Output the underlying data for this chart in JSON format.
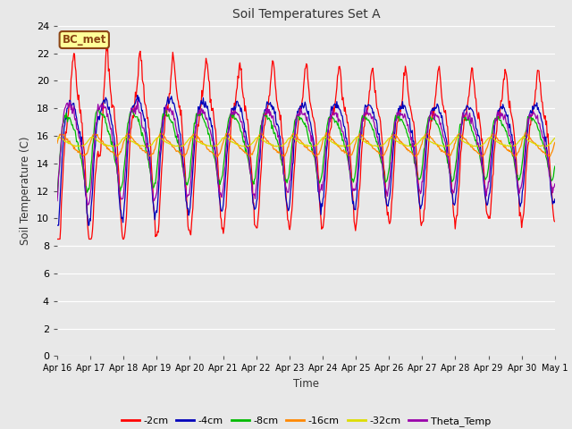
{
  "title": "Soil Temperatures Set A",
  "xlabel": "Time",
  "ylabel": "Soil Temperature (C)",
  "ylim": [
    0,
    24
  ],
  "yticks": [
    0,
    2,
    4,
    6,
    8,
    10,
    12,
    14,
    16,
    18,
    20,
    22,
    24
  ],
  "xtick_labels": [
    "Apr 16",
    "Apr 17",
    "Apr 18",
    "Apr 19",
    "Apr 20",
    "Apr 21",
    "Apr 22",
    "Apr 23",
    "Apr 24",
    "Apr 25",
    "Apr 26",
    "Apr 27",
    "Apr 28",
    "Apr 29",
    "Apr 30",
    "May 1"
  ],
  "legend_labels": [
    "-2cm",
    "-4cm",
    "-8cm",
    "-16cm",
    "-32cm",
    "Theta_Temp"
  ],
  "legend_colors": [
    "#ff0000",
    "#0000bb",
    "#00bb00",
    "#ff8800",
    "#dddd00",
    "#9900aa"
  ],
  "line_colors": [
    "#ff0000",
    "#0000bb",
    "#00bb00",
    "#ff8800",
    "#dddd00",
    "#9900aa"
  ],
  "annotation_text": "BC_met",
  "plot_bg": "#e8e8e8",
  "fig_bg": "#e8e8e8"
}
